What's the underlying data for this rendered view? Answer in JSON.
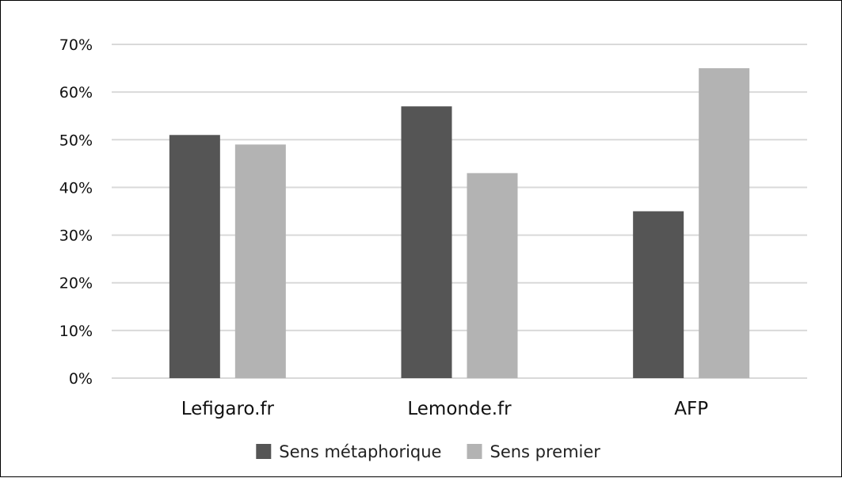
{
  "chart_data": {
    "type": "bar",
    "categories": [
      "Lefigaro.fr",
      "Lemonde.fr",
      "AFP"
    ],
    "series": [
      {
        "name": "Sens métaphorique",
        "values": [
          51,
          57,
          35
        ],
        "color": "#555555"
      },
      {
        "name": "Sens premier",
        "values": [
          49,
          43,
          65
        ],
        "color": "#b3b3b3"
      }
    ],
    "ylim": [
      0,
      70
    ],
    "y_ticks": [
      0,
      10,
      20,
      30,
      40,
      50,
      60,
      70
    ],
    "y_tick_labels": [
      "0%",
      "10%",
      "20%",
      "30%",
      "40%",
      "50%",
      "60%",
      "70%"
    ],
    "title": "",
    "xlabel": "",
    "ylabel": "",
    "grid": true,
    "gridline_color": "#d9d9d9",
    "legend_position": "bottom"
  }
}
